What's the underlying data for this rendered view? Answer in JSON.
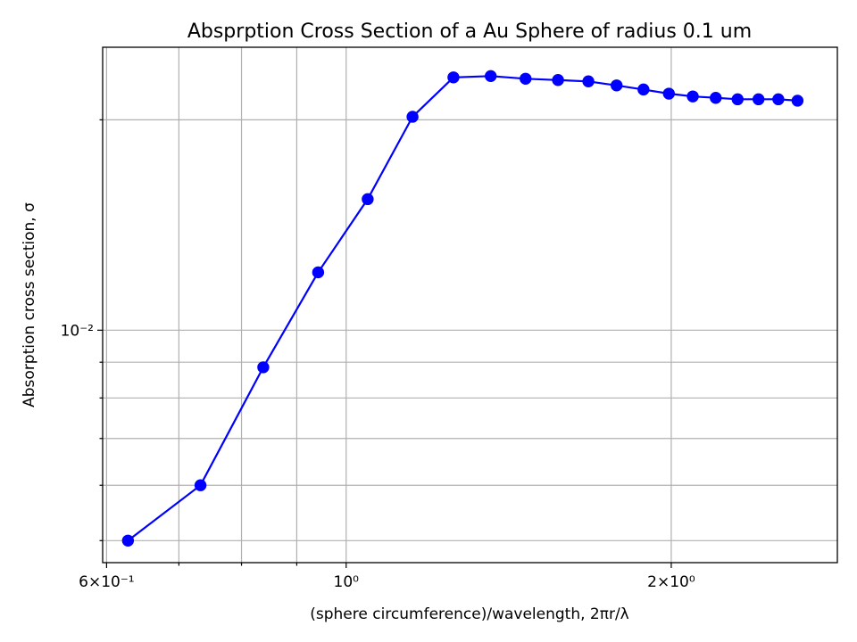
{
  "chart_data": {
    "type": "line",
    "title": "Absprption Cross Section of a Au Sphere of radius 0.1 um",
    "xlabel": "(sphere circumference)/wavelength, 2πr/λ",
    "ylabel": "Absorption cross section, σ",
    "xscale": "log",
    "yscale": "log",
    "xlim": [
      0.595,
      2.85
    ],
    "ylim": [
      0.00465,
      0.0254
    ],
    "grid": true,
    "colors": {
      "series": "#0000ff",
      "grid": "#b0b0b0"
    },
    "x_major_ticks": [
      {
        "value": 0.6,
        "label": "6×10⁻¹"
      },
      {
        "value": 1.0,
        "label": "10⁰"
      },
      {
        "value": 2.0,
        "label": "2×10⁰"
      }
    ],
    "x_minor_ticks": [
      0.7,
      0.8,
      0.9,
      3.0
    ],
    "y_major_ticks": [
      {
        "value": 0.01,
        "label": "10⁻²"
      }
    ],
    "y_minor_ticks": [
      0.005,
      0.006,
      0.007,
      0.008,
      0.009,
      0.02
    ],
    "series": [
      {
        "x": [
          0.628,
          0.733,
          0.838,
          0.942,
          1.047,
          1.152,
          1.257,
          1.361,
          1.466,
          1.571,
          1.676,
          1.78,
          1.885,
          1.99,
          2.094,
          2.199,
          2.304,
          2.409,
          2.513,
          2.618
        ],
        "y": [
          0.005,
          0.006,
          0.00885,
          0.0121,
          0.0154,
          0.0202,
          0.023,
          0.0231,
          0.0229,
          0.0228,
          0.0227,
          0.0224,
          0.0221,
          0.0218,
          0.0216,
          0.0215,
          0.0214,
          0.0214,
          0.0214,
          0.0213
        ]
      }
    ]
  }
}
